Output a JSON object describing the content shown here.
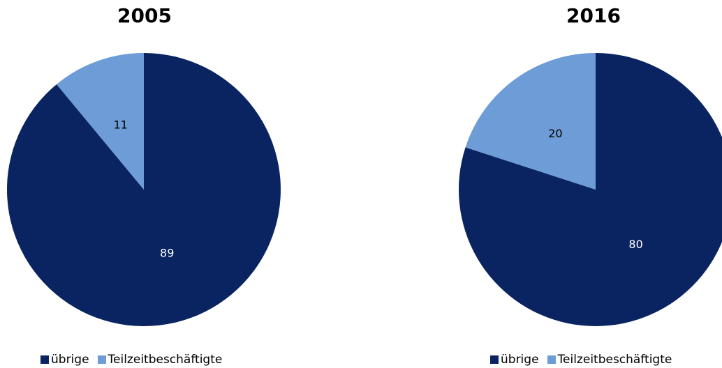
{
  "chart_data": [
    {
      "type": "pie",
      "title": "2005",
      "categories": [
        "übrige",
        "Teilzeitbeschäftigte"
      ],
      "values": [
        89,
        11
      ],
      "data_labels": [
        "89",
        "11"
      ],
      "colors": [
        "#0a2461",
        "#6d9cd6"
      ],
      "label_colors": [
        "#ffffff",
        "#000000"
      ],
      "legend": {
        "placement": "bottom",
        "entries": [
          "übrige",
          "Teilzeitbeschäftigte"
        ]
      }
    },
    {
      "type": "pie",
      "title": "2016",
      "categories": [
        "übrige",
        "Teilzeitbeschäftigte"
      ],
      "values": [
        80,
        20
      ],
      "data_labels": [
        "80",
        "20"
      ],
      "colors": [
        "#0a2461",
        "#6d9cd6"
      ],
      "label_colors": [
        "#ffffff",
        "#000000"
      ],
      "legend": {
        "placement": "bottom",
        "entries": [
          "übrige",
          "Teilzeitbeschäftigte"
        ]
      }
    }
  ]
}
